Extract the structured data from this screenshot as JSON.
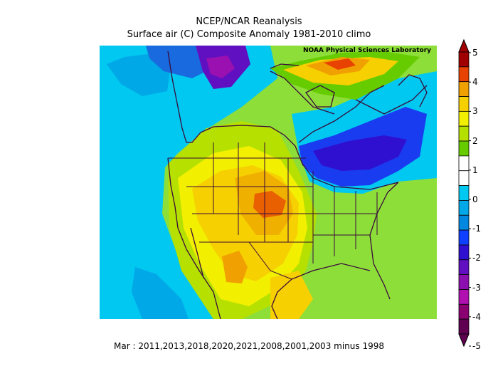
{
  "title": "NCEP/NCAR Reanalysis",
  "subtitle": "Surface air (C) Composite Anomaly 1981-2010 climo",
  "credit": "NOAA Physical Sciences Laboratory",
  "caption": "Mar : 2011,2013,2018,2020,2021,2008,2001,2003 minus 1998",
  "colorbar": {
    "ticks": [
      "5",
      "4",
      "3",
      "2",
      "1",
      "0",
      "-1",
      "-2",
      "-3",
      "-4",
      "-5"
    ],
    "colors": [
      "#a00000",
      "#e84200",
      "#f0a000",
      "#f6d000",
      "#f2f000",
      "#b6e000",
      "#66cc00",
      "#ffffff",
      "#ffffff",
      "#00c8f0",
      "#00a8e8",
      "#0088e0",
      "#1040ff",
      "#3010d0",
      "#6010c0",
      "#8c10b0",
      "#b010b0",
      "#8a0070",
      "#600050"
    ]
  }
}
